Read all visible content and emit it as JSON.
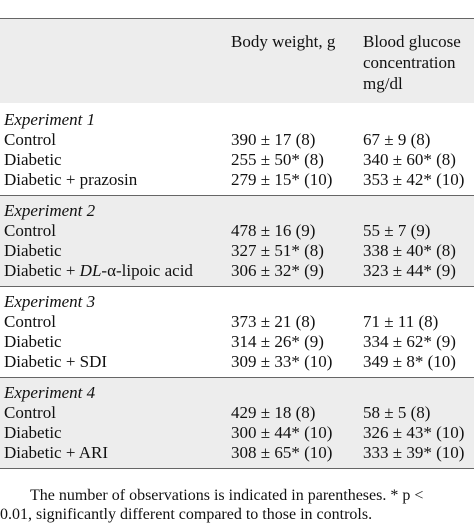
{
  "table": {
    "col_body_weight": "Body weight, g",
    "col_glucose_line1": "Blood glucose",
    "col_glucose_line2": "concentration",
    "col_glucose_line3": "mg/dl",
    "experiments": [
      {
        "title": "Experiment 1",
        "rows": [
          {
            "label": "Control",
            "bw": "390 ± 17 (8)",
            "bg": "67 ± 9 (8)"
          },
          {
            "label": "Diabetic",
            "bw": "255 ± 50* (8)",
            "bg": "340 ± 60* (8)"
          },
          {
            "label": "Diabetic + prazosin",
            "bw": "279 ± 15* (10)",
            "bg": "353 ± 42* (10)"
          }
        ]
      },
      {
        "title": "Experiment 2",
        "rows": [
          {
            "label": "Control",
            "bw": "478 ± 16 (9)",
            "bg": "55 ± 7 (9)"
          },
          {
            "label": "Diabetic",
            "bw": "327 ± 51* (8)",
            "bg": "338 ± 40* (8)"
          },
          {
            "label_prefix": "Diabetic + ",
            "label_italic": "DL",
            "label_suffix": "-α-lipoic acid",
            "bw": "306 ± 32* (9)",
            "bg": "323 ± 44* (9)"
          }
        ]
      },
      {
        "title": "Experiment 3",
        "rows": [
          {
            "label": "Control",
            "bw": "373 ± 21 (8)",
            "bg": "71 ± 11 (8)"
          },
          {
            "label": "Diabetic",
            "bw": "314 ± 26* (9)",
            "bg": "334 ± 62* (9)"
          },
          {
            "label": "Diabetic + SDI",
            "bw": "309 ± 33* (10)",
            "bg": "349 ± 8* (10)"
          }
        ]
      },
      {
        "title": "Experiment 4",
        "rows": [
          {
            "label": "Control",
            "bw": "429 ± 18 (8)",
            "bg": "58 ± 5 (8)"
          },
          {
            "label": "Diabetic",
            "bw": "300 ± 44* (10)",
            "bg": "326 ± 43* (10)"
          },
          {
            "label": "Diabetic + ARI",
            "bw": "308 ± 65* (10)",
            "bg": "333 ± 39* (10)"
          }
        ]
      }
    ]
  },
  "footnote": {
    "line1": "The number of observations is indicated in parentheses. * p <",
    "line2": "0.01, significantly different compared to those in controls."
  }
}
